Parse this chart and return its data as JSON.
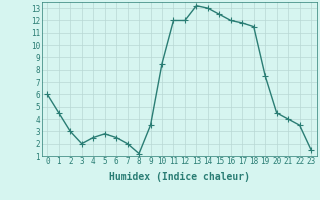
{
  "x": [
    0,
    1,
    2,
    3,
    4,
    5,
    6,
    7,
    8,
    9,
    10,
    11,
    12,
    13,
    14,
    15,
    16,
    17,
    18,
    19,
    20,
    21,
    22,
    23
  ],
  "y": [
    6,
    4.5,
    3,
    2,
    2.5,
    2.8,
    2.5,
    2,
    1.2,
    3.5,
    8.5,
    12,
    12,
    13.2,
    13,
    12.5,
    12,
    11.8,
    11.5,
    7.5,
    4.5,
    4,
    3.5,
    1.5
  ],
  "line_color": "#2a7d74",
  "marker_color": "#2a7d74",
  "bg_color": "#d6f5f0",
  "grid_color": "#b8d8d4",
  "xlabel": "Humidex (Indice chaleur)",
  "xlim": [
    -0.5,
    23.5
  ],
  "ylim": [
    1,
    13.5
  ],
  "xticks": [
    0,
    1,
    2,
    3,
    4,
    5,
    6,
    7,
    8,
    9,
    10,
    11,
    12,
    13,
    14,
    15,
    16,
    17,
    18,
    19,
    20,
    21,
    22,
    23
  ],
  "yticks": [
    1,
    2,
    3,
    4,
    5,
    6,
    7,
    8,
    9,
    10,
    11,
    12,
    13
  ],
  "tick_color": "#2a7d74",
  "label_color": "#2a7d74",
  "xlabel_fontsize": 7,
  "tick_fontsize": 5.5,
  "linewidth": 1.0,
  "markersize": 2.0
}
